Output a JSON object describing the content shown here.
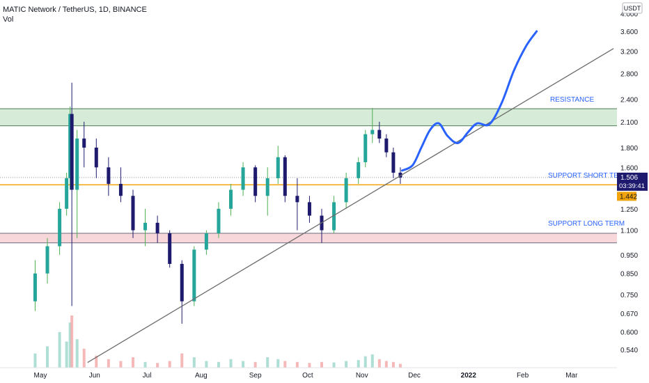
{
  "header": {
    "symbol_line": "MATIC Network / TetherUS, 1D, BINANCE",
    "indicator": "Vol"
  },
  "currency_badge": "USDT",
  "colors": {
    "up": "#26a69a",
    "down": "#1e1a6e",
    "wick_up": "#4caf50",
    "resistance_fill": "#d6ecd9",
    "resistance_border": "#4d7d56",
    "support_fill": "#f8d7da",
    "support_border": "#6b6b7a",
    "support_line": "#f0a30a",
    "trendline": "#6b6b6b",
    "forecast": "#2962ff",
    "annotation": "#2962ff",
    "price_tag_bg": "#1e1a6e",
    "level_tag_bg": "#f0a30a"
  },
  "price_tag": {
    "price": "1.506",
    "countdown": "03:39:41"
  },
  "level_tag": "1.442",
  "annotations": {
    "resistance": "RESISTANCE",
    "support_short": "SUPPORT SHORT TERM",
    "support_long": "SUPPORT LONG TERM"
  },
  "chart_data": {
    "type": "candlestick",
    "y_scale": "log",
    "y_ticks": [
      "4.000",
      "3.600",
      "3.200",
      "2.800",
      "2.400",
      "2.100",
      "1.800",
      "1.600",
      "1.250",
      "1.100",
      "0.950",
      "0.850",
      "0.750",
      "0.670",
      "0.600",
      "0.540"
    ],
    "x_ticks": [
      "May",
      "Jun",
      "Jul",
      "Aug",
      "Sep",
      "Oct",
      "Nov",
      "Dec",
      "2022",
      "Feb",
      "Mar"
    ],
    "ylim": [
      0.5,
      4.0
    ],
    "resistance_zone": [
      2.05,
      2.27
    ],
    "support_long_zone": [
      1.02,
      1.08
    ],
    "support_short_level": 1.442,
    "last_price": 1.506,
    "trendline": [
      {
        "date": "May 28",
        "price": 0.5
      },
      {
        "date": "Mar 25",
        "price": 3.25
      }
    ],
    "forecast_path": [
      {
        "date": "Nov 24",
        "price": 1.57
      },
      {
        "date": "Nov 30",
        "price": 1.62
      },
      {
        "date": "Dec 5",
        "price": 1.8
      },
      {
        "date": "Dec 10",
        "price": 2.0
      },
      {
        "date": "Dec 15",
        "price": 2.08
      },
      {
        "date": "Dec 20",
        "price": 1.93
      },
      {
        "date": "Dec 26",
        "price": 1.85
      },
      {
        "date": "Jan 1",
        "price": 1.98
      },
      {
        "date": "Jan 6",
        "price": 2.08
      },
      {
        "date": "Jan 13",
        "price": 2.07
      },
      {
        "date": "Jan 20",
        "price": 2.35
      },
      {
        "date": "Jan 27",
        "price": 2.85
      },
      {
        "date": "Feb 3",
        "price": 3.3
      },
      {
        "date": "Feb 9",
        "price": 3.6
      }
    ],
    "candles": [
      {
        "date": "Apr 28",
        "o": 0.72,
        "h": 0.92,
        "l": 0.68,
        "c": 0.85
      },
      {
        "date": "May 5",
        "o": 0.85,
        "h": 1.05,
        "l": 0.8,
        "c": 1.0
      },
      {
        "date": "May 12",
        "o": 1.0,
        "h": 1.3,
        "l": 0.95,
        "c": 1.25
      },
      {
        "date": "May 16",
        "o": 1.25,
        "h": 1.55,
        "l": 1.2,
        "c": 1.5
      },
      {
        "date": "May 18",
        "o": 1.5,
        "h": 2.3,
        "l": 1.4,
        "c": 2.2
      },
      {
        "date": "May 19",
        "o": 2.2,
        "h": 2.65,
        "l": 0.7,
        "c": 1.4
      },
      {
        "date": "May 22",
        "o": 1.4,
        "h": 2.0,
        "l": 1.05,
        "c": 1.9
      },
      {
        "date": "May 26",
        "o": 1.9,
        "h": 2.1,
        "l": 1.6,
        "c": 1.8
      },
      {
        "date": "Jun 2",
        "o": 1.8,
        "h": 1.9,
        "l": 1.5,
        "c": 1.6
      },
      {
        "date": "Jun 9",
        "o": 1.6,
        "h": 1.7,
        "l": 1.35,
        "c": 1.45
      },
      {
        "date": "Jun 16",
        "o": 1.45,
        "h": 1.6,
        "l": 1.3,
        "c": 1.35
      },
      {
        "date": "Jun 23",
        "o": 1.35,
        "h": 1.4,
        "l": 1.05,
        "c": 1.1
      },
      {
        "date": "Jun 30",
        "o": 1.1,
        "h": 1.25,
        "l": 1.0,
        "c": 1.15
      },
      {
        "date": "Jul 7",
        "o": 1.15,
        "h": 1.2,
        "l": 1.02,
        "c": 1.08
      },
      {
        "date": "Jul 14",
        "o": 1.08,
        "h": 1.1,
        "l": 0.88,
        "c": 0.9
      },
      {
        "date": "Jul 21",
        "o": 0.9,
        "h": 0.92,
        "l": 0.63,
        "c": 0.72
      },
      {
        "date": "Jul 28",
        "o": 0.72,
        "h": 1.0,
        "l": 0.7,
        "c": 0.98
      },
      {
        "date": "Aug 4",
        "o": 0.98,
        "h": 1.1,
        "l": 0.95,
        "c": 1.08
      },
      {
        "date": "Aug 11",
        "o": 1.08,
        "h": 1.3,
        "l": 1.05,
        "c": 1.25
      },
      {
        "date": "Aug 18",
        "o": 1.25,
        "h": 1.45,
        "l": 1.2,
        "c": 1.4
      },
      {
        "date": "Aug 25",
        "o": 1.4,
        "h": 1.65,
        "l": 1.35,
        "c": 1.6
      },
      {
        "date": "Sep 1",
        "o": 1.6,
        "h": 1.62,
        "l": 1.3,
        "c": 1.35
      },
      {
        "date": "Sep 8",
        "o": 1.35,
        "h": 1.6,
        "l": 1.2,
        "c": 1.5
      },
      {
        "date": "Sep 14",
        "o": 1.5,
        "h": 1.82,
        "l": 1.45,
        "c": 1.7
      },
      {
        "date": "Sep 18",
        "o": 1.7,
        "h": 1.72,
        "l": 1.3,
        "c": 1.35
      },
      {
        "date": "Sep 25",
        "o": 1.35,
        "h": 1.5,
        "l": 1.1,
        "c": 1.3
      },
      {
        "date": "Oct 2",
        "o": 1.3,
        "h": 1.35,
        "l": 1.15,
        "c": 1.2
      },
      {
        "date": "Oct 9",
        "o": 1.2,
        "h": 1.25,
        "l": 1.02,
        "c": 1.1
      },
      {
        "date": "Oct 16",
        "o": 1.1,
        "h": 1.35,
        "l": 1.08,
        "c": 1.3
      },
      {
        "date": "Oct 23",
        "o": 1.3,
        "h": 1.55,
        "l": 1.25,
        "c": 1.5
      },
      {
        "date": "Oct 30",
        "o": 1.5,
        "h": 1.7,
        "l": 1.45,
        "c": 1.65
      },
      {
        "date": "Nov 3",
        "o": 1.65,
        "h": 2.0,
        "l": 1.6,
        "c": 1.95
      },
      {
        "date": "Nov 7",
        "o": 1.95,
        "h": 2.28,
        "l": 1.85,
        "c": 2.0
      },
      {
        "date": "Nov 11",
        "o": 2.0,
        "h": 2.1,
        "l": 1.85,
        "c": 1.9
      },
      {
        "date": "Nov 15",
        "o": 1.9,
        "h": 1.95,
        "l": 1.7,
        "c": 1.75
      },
      {
        "date": "Nov 19",
        "o": 1.75,
        "h": 1.8,
        "l": 1.5,
        "c": 1.55
      },
      {
        "date": "Nov 23",
        "o": 1.55,
        "h": 1.6,
        "l": 1.45,
        "c": 1.506
      }
    ],
    "volume": [
      {
        "date": "Apr 28",
        "v": 30
      },
      {
        "date": "May 5",
        "v": 45
      },
      {
        "date": "May 12",
        "v": 75
      },
      {
        "date": "May 16",
        "v": 55
      },
      {
        "date": "May 18",
        "v": 95
      },
      {
        "date": "May 19",
        "v": 110
      },
      {
        "date": "May 22",
        "v": 60
      },
      {
        "date": "May 26",
        "v": 40
      },
      {
        "date": "Jun 2",
        "v": 25
      },
      {
        "date": "Jun 9",
        "v": 18
      },
      {
        "date": "Jun 16",
        "v": 14
      },
      {
        "date": "Jun 23",
        "v": 22
      },
      {
        "date": "Jun 30",
        "v": 12
      },
      {
        "date": "Jul 7",
        "v": 10
      },
      {
        "date": "Jul 14",
        "v": 14
      },
      {
        "date": "Jul 21",
        "v": 30
      },
      {
        "date": "Jul 28",
        "v": 22
      },
      {
        "date": "Aug 4",
        "v": 14
      },
      {
        "date": "Aug 11",
        "v": 12
      },
      {
        "date": "Aug 18",
        "v": 18
      },
      {
        "date": "Aug 25",
        "v": 14
      },
      {
        "date": "Sep 1",
        "v": 12
      },
      {
        "date": "Sep 8",
        "v": 22
      },
      {
        "date": "Sep 14",
        "v": 18
      },
      {
        "date": "Sep 18",
        "v": 14
      },
      {
        "date": "Sep 25",
        "v": 12
      },
      {
        "date": "Oct 2",
        "v": 10
      },
      {
        "date": "Oct 9",
        "v": 12
      },
      {
        "date": "Oct 16",
        "v": 11
      },
      {
        "date": "Oct 23",
        "v": 14
      },
      {
        "date": "Oct 30",
        "v": 16
      },
      {
        "date": "Nov 3",
        "v": 24
      },
      {
        "date": "Nov 7",
        "v": 28
      },
      {
        "date": "Nov 11",
        "v": 18
      },
      {
        "date": "Nov 15",
        "v": 14
      },
      {
        "date": "Nov 19",
        "v": 12
      },
      {
        "date": "Nov 23",
        "v": 8
      }
    ]
  }
}
